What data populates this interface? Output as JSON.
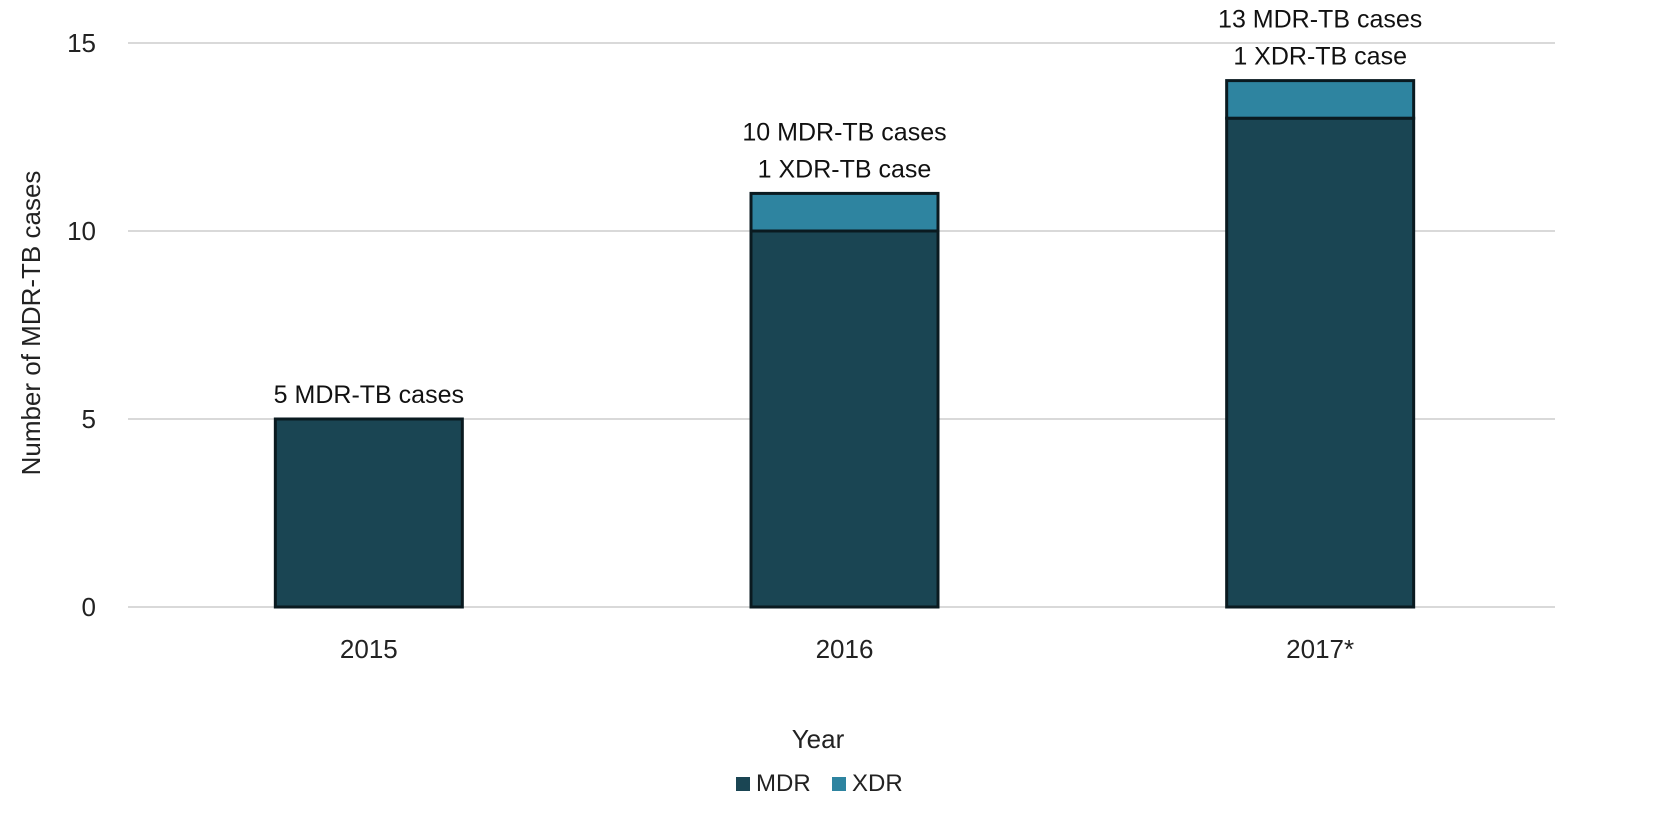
{
  "chart_data": {
    "type": "bar",
    "stacked": true,
    "categories": [
      "2015",
      "2016",
      "2017*"
    ],
    "series": [
      {
        "name": "MDR",
        "values": [
          5,
          10,
          13
        ],
        "color": "#1a4553"
      },
      {
        "name": "XDR",
        "values": [
          0,
          1,
          1
        ],
        "color": "#2e84a0"
      }
    ],
    "annotations": [
      [
        "5 MDR-TB cases"
      ],
      [
        "10 MDR-TB cases",
        "1 XDR-TB case"
      ],
      [
        "13 MDR-TB cases",
        "1 XDR-TB case"
      ]
    ],
    "xlabel": "Year",
    "ylabel": "Number of MDR-TB cases",
    "ylim": [
      0,
      15
    ],
    "yticks": [
      0,
      5,
      10,
      15
    ],
    "grid": true,
    "legend_position": "bottom-center"
  }
}
